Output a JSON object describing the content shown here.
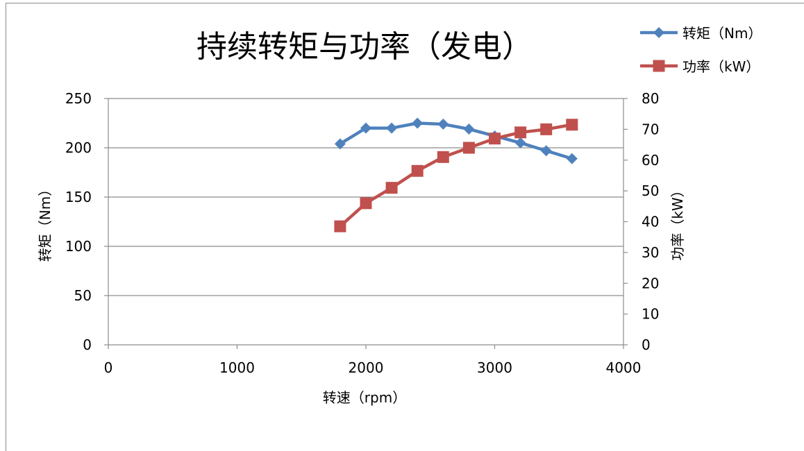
{
  "chart_data": {
    "type": "line",
    "title": "持续转矩与功率（发电）",
    "xlabel": "转速（rpm）",
    "ylabel_left": "转矩（Nm）",
    "ylabel_right": "功率（kW）",
    "xlim": [
      0,
      4000
    ],
    "xticks": [
      0,
      1000,
      2000,
      3000,
      4000
    ],
    "ylim_left": [
      0,
      250
    ],
    "yticks_left": [
      0,
      50,
      100,
      150,
      200,
      250
    ],
    "ylim_right": [
      0,
      80
    ],
    "yticks_right": [
      0,
      10,
      20,
      30,
      40,
      50,
      60,
      70,
      80
    ],
    "grid": "horizontal",
    "legend_position": "top-right",
    "series": [
      {
        "name": "转矩（Nm）",
        "axis": "left",
        "color": "#4F81BD",
        "marker": "diamond",
        "x": [
          1800,
          2000,
          2200,
          2400,
          2600,
          2800,
          3000,
          3200,
          3400,
          3600
        ],
        "y": [
          204,
          220,
          220,
          225,
          224,
          219,
          212,
          205,
          197,
          189
        ]
      },
      {
        "name": "功率（kW）",
        "axis": "right",
        "color": "#C0504D",
        "marker": "square",
        "x": [
          1800,
          2000,
          2200,
          2400,
          2600,
          2800,
          3000,
          3200,
          3400,
          3600
        ],
        "y": [
          38.5,
          46,
          51,
          56.5,
          61,
          64,
          67,
          69,
          70,
          71.5
        ]
      }
    ]
  }
}
